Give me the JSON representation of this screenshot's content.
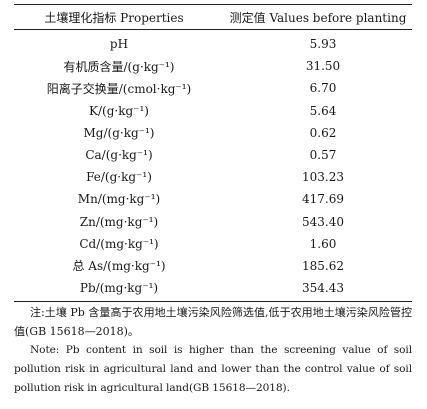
{
  "table": {
    "headers": {
      "property": "土壤理化指标 Properties",
      "value": "测定值 Values before planting"
    },
    "rows": [
      {
        "property": "pH",
        "value": "5.93"
      },
      {
        "property": "有机质含量/(g·kg⁻¹)",
        "value": "31.50"
      },
      {
        "property": "阳离子交换量/(cmol·kg⁻¹)",
        "value": "6.70"
      },
      {
        "property": "K/(g·kg⁻¹)",
        "value": "5.64"
      },
      {
        "property": "Mg/(g·kg⁻¹)",
        "value": "0.62"
      },
      {
        "property": "Ca/(g·kg⁻¹)",
        "value": "0.57"
      },
      {
        "property": "Fe/(g·kg⁻¹)",
        "value": "103.23"
      },
      {
        "property": "Mn/(mg·kg⁻¹)",
        "value": "417.69"
      },
      {
        "property": "Zn/(mg·kg⁻¹)",
        "value": "543.40"
      },
      {
        "property": "Cd/(mg·kg⁻¹)",
        "value": "1.60"
      },
      {
        "property": "总 As/(mg·kg⁻¹)",
        "value": "185.62"
      },
      {
        "property": "Pb/(mg·kg⁻¹)",
        "value": "354.43"
      }
    ]
  },
  "notes": {
    "chinese": "注:土壤 Pb 含量高于农用地土壤污染风险筛选值,低于农用地土壤污染风险管控值(GB 15618—2018)。",
    "english": "Note: Pb content in soil is higher than the screening value of soil pollution risk in agricultural land and lower than the control value of soil pollution risk in agricultural land(GB 15618—2018)."
  }
}
